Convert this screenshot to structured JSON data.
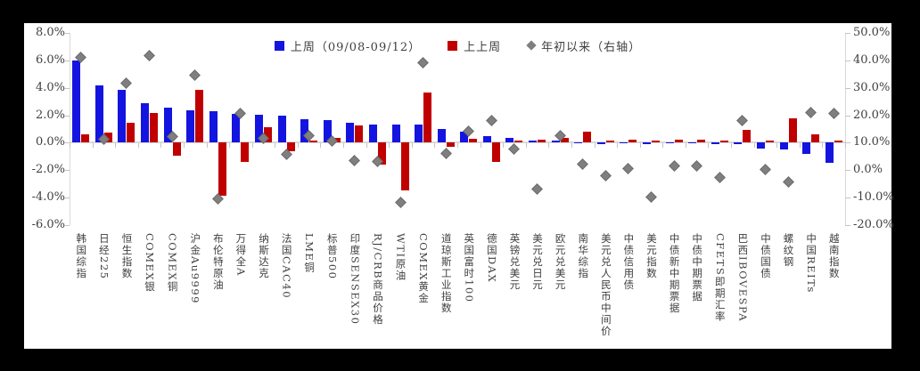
{
  "chart_data": {
    "type": "bar",
    "title": "",
    "legend": [
      {
        "label": "上周（09/08-09/12）",
        "marker": "square",
        "color": "#1414e0"
      },
      {
        "label": "上上周",
        "marker": "square",
        "color": "#c00000"
      },
      {
        "label": "年初以来（右轴）",
        "marker": "diamond",
        "color": "#7f7f7f"
      }
    ],
    "left_axis": {
      "ticks": [
        "8.0%",
        "6.0%",
        "4.0%",
        "2.0%",
        "0.0%",
        "-2.0%",
        "-4.0%",
        "-6.0%"
      ],
      "max": 8,
      "min": -6,
      "unit": "%"
    },
    "right_axis": {
      "ticks": [
        "50.0%",
        "40.0%",
        "30.0%",
        "20.0%",
        "10.0%",
        "0.0%",
        "-10.0%",
        "-20.0%"
      ],
      "max": 50,
      "min": -20,
      "unit": "%"
    },
    "categories": [
      "韩国综指",
      "日经225",
      "恒生指数",
      "COMEX银",
      "COMEX铜",
      "沪金Au9999",
      "布伦特原油",
      "万得全A",
      "纳斯达克",
      "法国CAC40",
      "LME铜",
      "标普500",
      "印度SENSEX30",
      "RJ/CRB商品价格",
      "WTI原油",
      "COMEX黄金",
      "道琼斯工业指数",
      "英国富时100",
      "德国DAX",
      "英镑兑美元",
      "美元兑日元",
      "欧元兑美元",
      "南华综指",
      "美元兑人民币中间价",
      "中债信用债",
      "美元指数",
      "中债新中期票据",
      "中债中期票据",
      "CFETS即期汇率",
      "巴西IBOVESPA",
      "中债国债",
      "螺纹钢",
      "中国REITs",
      "越南指数"
    ],
    "series": [
      {
        "name": "上周（09/08-09/12）",
        "axis": "left",
        "type": "bar",
        "values": [
          5.95,
          4.15,
          3.85,
          2.85,
          2.55,
          2.35,
          2.25,
          2.1,
          2.0,
          1.95,
          1.7,
          1.6,
          1.4,
          1.3,
          1.3,
          1.3,
          0.95,
          0.8,
          0.45,
          0.3,
          0.1,
          0.1,
          -0.05,
          -0.1,
          -0.05,
          -0.1,
          -0.05,
          -0.05,
          -0.15,
          -0.1,
          -0.45,
          -0.55,
          -0.85,
          -1.5
        ]
      },
      {
        "name": "上上周",
        "axis": "left",
        "type": "bar",
        "values": [
          0.6,
          0.7,
          1.4,
          2.15,
          -0.95,
          3.8,
          -3.9,
          -1.4,
          1.1,
          -0.65,
          0.1,
          0.3,
          1.2,
          -1.6,
          -3.5,
          3.6,
          -0.35,
          0.25,
          -1.4,
          0.15,
          0.2,
          0.35,
          0.8,
          0.15,
          0.2,
          0.1,
          0.2,
          0.2,
          0.15,
          0.9,
          0.15,
          1.75,
          0.6,
          0.15
        ]
      },
      {
        "name": "年初以来（右轴）",
        "axis": "right",
        "type": "scatter-diamond",
        "values": [
          41,
          11,
          31.5,
          41.5,
          12,
          34.5,
          -10.5,
          20.5,
          11.5,
          5.5,
          12.5,
          10.5,
          3.5,
          3,
          -12,
          39,
          6,
          14,
          18,
          7.5,
          -7,
          12.5,
          2,
          -2,
          0.5,
          -10,
          1.5,
          1.5,
          -2.8,
          18,
          0,
          -4.5,
          21,
          20.5
        ]
      }
    ],
    "layout": {
      "grid": false,
      "legend_position": "top-center",
      "category_labels": "vertical"
    }
  },
  "colors": {
    "last_week": "#1414e0",
    "prev_week": "#c00000",
    "ytd": "#7f7f7f",
    "axis_line": "#d9d9d9",
    "tick": "#c4c4c4",
    "text": "#404040",
    "background": "#ffffff",
    "frame": "#000000"
  }
}
